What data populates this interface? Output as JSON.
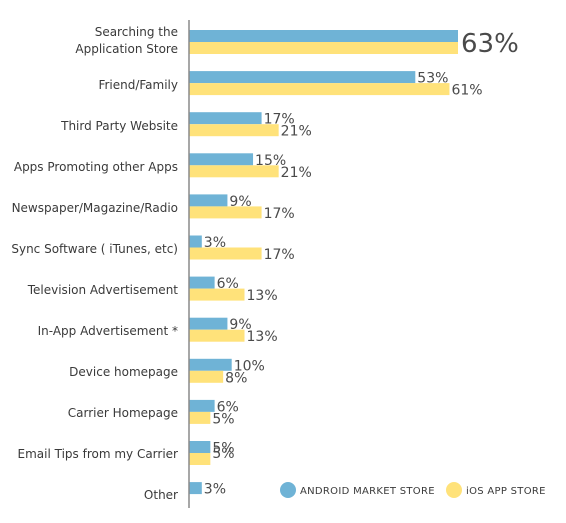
{
  "chart_data": {
    "type": "bar",
    "orientation": "horizontal",
    "categories": [
      "Searching the\nApplication Store",
      "Friend/Family",
      "Third Party Website",
      "Apps Promoting other Apps",
      "Newspaper/Magazine/Radio",
      "Sync Software ( iTunes, etc)",
      "Television Advertisement",
      "In-App Advertisement *",
      "Device homepage",
      "Carrier Homepage",
      "Email Tips from my Carrier",
      "Other"
    ],
    "series": [
      {
        "name": "ANDROID MARKET STORE",
        "color": "#6fb3d6",
        "values": [
          63,
          53,
          17,
          15,
          9,
          3,
          6,
          9,
          10,
          6,
          5,
          3
        ],
        "labels": [
          "",
          "53%",
          "17%",
          "15%",
          "9%",
          "3%",
          "6%",
          "9%",
          "10%",
          "6%",
          "5%",
          "3%"
        ]
      },
      {
        "name": "iOS APP STORE",
        "color": "#ffe27a",
        "values": [
          63,
          61,
          21,
          21,
          17,
          17,
          13,
          13,
          8,
          5,
          5,
          null
        ],
        "labels": [
          "",
          "61%",
          "21%",
          "21%",
          "17%",
          "17%",
          "13%",
          "13%",
          "8%",
          "5%",
          "",
          ""
        ]
      }
    ],
    "combined_labels": [
      "63%",
      "",
      "",
      "",
      "",
      "",
      "",
      "",
      "",
      "",
      "5%",
      ""
    ],
    "axis_color": "#8a8a8a",
    "legend_position": "bottom-right",
    "grid": false
  }
}
